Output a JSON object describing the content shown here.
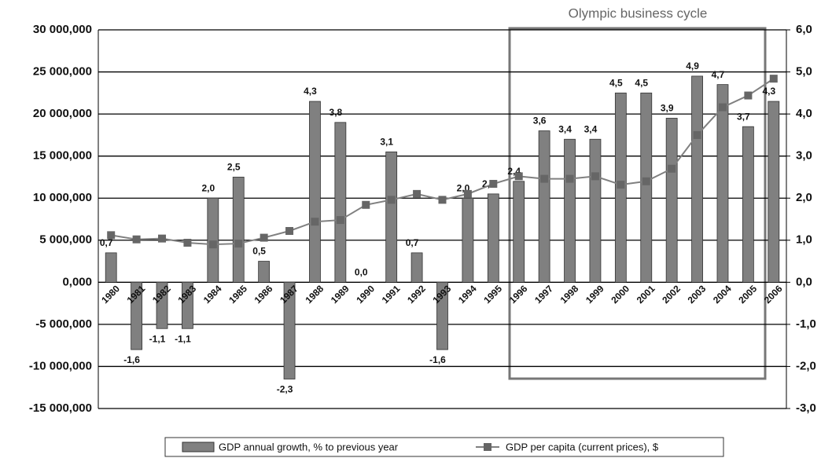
{
  "chart_data": {
    "type": "bar",
    "categories": [
      "1980",
      "1981",
      "1982",
      "1983",
      "1984",
      "1985",
      "1986",
      "1987",
      "1988",
      "1989",
      "1990",
      "1991",
      "1992",
      "1993",
      "1994",
      "1995",
      "1996",
      "1997",
      "1998",
      "1999",
      "2000",
      "2001",
      "2002",
      "2003",
      "2004",
      "2005",
      "2006"
    ],
    "series": [
      {
        "name": "GDP annual growth, % to previous year",
        "type": "bar",
        "color": "#808080",
        "axis": "y2",
        "values": [
          0.7,
          -1.6,
          -1.1,
          -1.1,
          2.0,
          2.5,
          0.5,
          -2.3,
          4.3,
          3.8,
          0.0,
          3.1,
          0.7,
          -1.6,
          2.0,
          2.1,
          2.4,
          3.6,
          3.4,
          3.4,
          4.5,
          4.5,
          3.9,
          4.9,
          4.7,
          3.7,
          4.3
        ],
        "value_labels": [
          "0,7",
          "-1,6",
          "-1,1",
          "-1,1",
          "2,0",
          "2,5",
          "0,5",
          "-2,3",
          "4,3",
          "3,8",
          "0,0",
          "3,1",
          "0,7",
          "-1,6",
          "2,0",
          "2,1",
          "2,4",
          "3,6",
          "3,4",
          "3,4",
          "4,5",
          "4,5",
          "3,9",
          "4,9",
          "4,7",
          "3,7",
          "4,3"
        ]
      },
      {
        "name": "GDP per capita (current prices), $",
        "type": "line",
        "color": "#808080",
        "values": [
          5600000,
          5100000,
          5200000,
          4700000,
          4500000,
          4600000,
          5300000,
          6100000,
          7200000,
          7400000,
          9200000,
          9800000,
          10500000,
          9800000,
          10500000,
          11700000,
          12600000,
          12300000,
          12300000,
          12600000,
          11600000,
          12000000,
          13500000,
          17500000,
          20800000,
          22200000,
          24200000
        ]
      }
    ],
    "ylim": [
      -15000000,
      30000000
    ],
    "yticks": [
      {
        "value": -15000000,
        "label": "-15 000,000"
      },
      {
        "value": -10000000,
        "label": "-10 000,000"
      },
      {
        "value": -5000000,
        "label": "-5 000,000"
      },
      {
        "value": 0,
        "label": "0,000"
      },
      {
        "value": 5000000,
        "label": "5 000,000"
      },
      {
        "value": 10000000,
        "label": "10 000,000"
      },
      {
        "value": 15000000,
        "label": "15 000,000"
      },
      {
        "value": 20000000,
        "label": "20 000,000"
      },
      {
        "value": 25000000,
        "label": "25 000,000"
      },
      {
        "value": 30000000,
        "label": "30 000,000"
      }
    ],
    "y2lim": [
      -3,
      6
    ],
    "y2ticks": [
      {
        "value": -3,
        "label": "-3,0"
      },
      {
        "value": -2,
        "label": "-2,0"
      },
      {
        "value": -1,
        "label": "-1,0"
      },
      {
        "value": 0,
        "label": "0,0"
      },
      {
        "value": 1,
        "label": "1,0"
      },
      {
        "value": 2,
        "label": "2,0"
      },
      {
        "value": 3,
        "label": "3,0"
      },
      {
        "value": 4,
        "label": "4,0"
      },
      {
        "value": 5,
        "label": "5,0"
      },
      {
        "value": 6,
        "label": "6,0"
      }
    ],
    "annotation": "Olympic business cycle",
    "grid": true,
    "legend": "bottom"
  }
}
